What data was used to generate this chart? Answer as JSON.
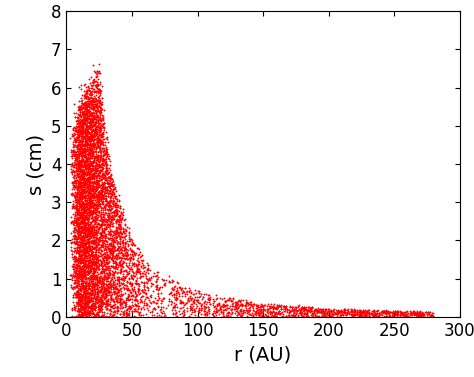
{
  "title": "",
  "xlabel": "r (AU)",
  "ylabel": "s (cm)",
  "xlim": [
    0,
    300
  ],
  "ylim": [
    0,
    8
  ],
  "xticks": [
    0,
    50,
    100,
    150,
    200,
    250,
    300
  ],
  "yticks": [
    0,
    1,
    2,
    3,
    4,
    5,
    6,
    7,
    8
  ],
  "marker_color": "#ff0000",
  "marker": "+",
  "n_points": 8000,
  "seed": 42,
  "background_color": "#ffffff",
  "r_peak": 25.0,
  "s_max_at_peak": 6.2,
  "xlabel_fontsize": 14,
  "ylabel_fontsize": 14,
  "tick_labelsize": 12
}
